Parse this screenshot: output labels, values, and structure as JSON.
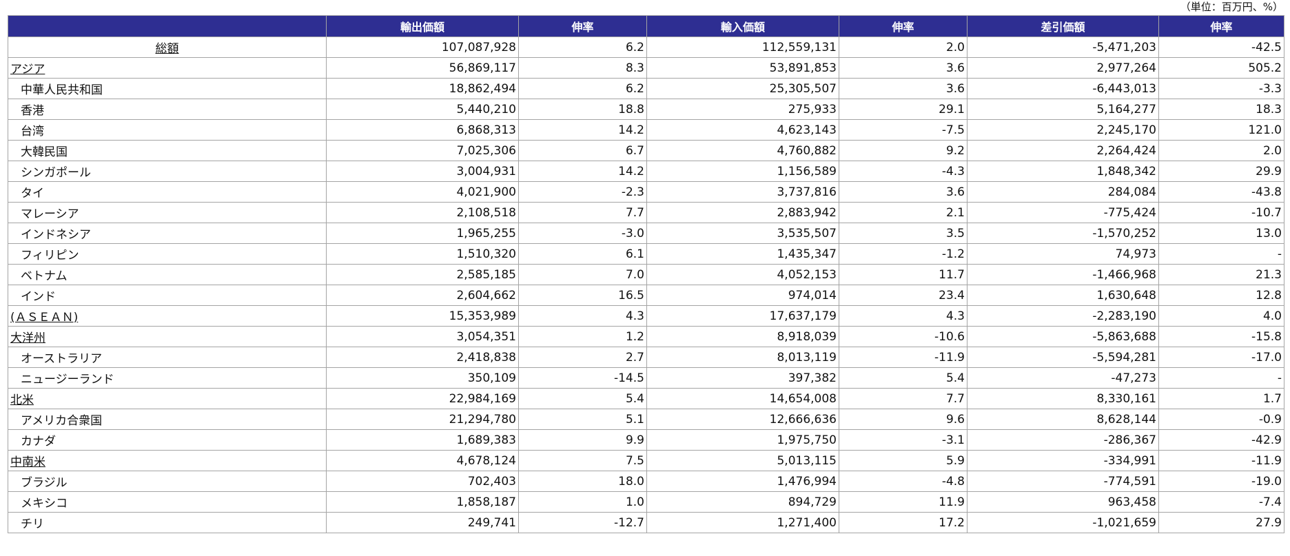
{
  "unit_note": "（単位：百万円、%）",
  "headers": [
    "",
    "輸出価額",
    "伸率",
    "輸入価額",
    "伸率",
    "差引価額",
    "伸率"
  ],
  "rows": [
    {
      "name": "総額",
      "type": "total",
      "link": true,
      "cells": [
        "107,087,928",
        "6.2",
        "112,559,131",
        "2.0",
        "-5,471,203",
        "-42.5"
      ]
    },
    {
      "name": "アジア",
      "type": "region",
      "link": true,
      "cells": [
        "56,869,117",
        "8.3",
        "53,891,853",
        "3.6",
        "2,977,264",
        "505.2"
      ]
    },
    {
      "name": "中華人民共和国",
      "type": "country",
      "link": false,
      "cells": [
        "18,862,494",
        "6.2",
        "25,305,507",
        "3.6",
        "-6,443,013",
        "-3.3"
      ]
    },
    {
      "name": "香港",
      "type": "country",
      "link": false,
      "cells": [
        "5,440,210",
        "18.8",
        "275,933",
        "29.1",
        "5,164,277",
        "18.3"
      ]
    },
    {
      "name": "台湾",
      "type": "country",
      "link": false,
      "cells": [
        "6,868,313",
        "14.2",
        "4,623,143",
        "-7.5",
        "2,245,170",
        "121.0"
      ]
    },
    {
      "name": "大韓民国",
      "type": "country",
      "link": false,
      "cells": [
        "7,025,306",
        "6.7",
        "4,760,882",
        "9.2",
        "2,264,424",
        "2.0"
      ]
    },
    {
      "name": "シンガポール",
      "type": "country",
      "link": false,
      "cells": [
        "3,004,931",
        "14.2",
        "1,156,589",
        "-4.3",
        "1,848,342",
        "29.9"
      ]
    },
    {
      "name": "タイ",
      "type": "country",
      "link": false,
      "cells": [
        "4,021,900",
        "-2.3",
        "3,737,816",
        "3.6",
        "284,084",
        "-43.8"
      ]
    },
    {
      "name": "マレーシア",
      "type": "country",
      "link": false,
      "cells": [
        "2,108,518",
        "7.7",
        "2,883,942",
        "2.1",
        "-775,424",
        "-10.7"
      ]
    },
    {
      "name": "インドネシア",
      "type": "country",
      "link": false,
      "cells": [
        "1,965,255",
        "-3.0",
        "3,535,507",
        "3.5",
        "-1,570,252",
        "13.0"
      ]
    },
    {
      "name": "フィリピン",
      "type": "country",
      "link": false,
      "cells": [
        "1,510,320",
        "6.1",
        "1,435,347",
        "-1.2",
        "74,973",
        "-"
      ]
    },
    {
      "name": "ベトナム",
      "type": "country",
      "link": false,
      "cells": [
        "2,585,185",
        "7.0",
        "4,052,153",
        "11.7",
        "-1,466,968",
        "21.3"
      ]
    },
    {
      "name": "インド",
      "type": "country",
      "link": false,
      "cells": [
        "2,604,662",
        "16.5",
        "974,014",
        "23.4",
        "1,630,648",
        "12.8"
      ]
    },
    {
      "name": "(ＡＳＥＡＮ)",
      "type": "region",
      "link": true,
      "cells": [
        "15,353,989",
        "4.3",
        "17,637,179",
        "4.3",
        "-2,283,190",
        "4.0"
      ]
    },
    {
      "name": "大洋州",
      "type": "region",
      "link": true,
      "cells": [
        "3,054,351",
        "1.2",
        "8,918,039",
        "-10.6",
        "-5,863,688",
        "-15.8"
      ]
    },
    {
      "name": "オーストラリア",
      "type": "country",
      "link": false,
      "cells": [
        "2,418,838",
        "2.7",
        "8,013,119",
        "-11.9",
        "-5,594,281",
        "-17.0"
      ]
    },
    {
      "name": "ニュージーランド",
      "type": "country",
      "link": false,
      "cells": [
        "350,109",
        "-14.5",
        "397,382",
        "5.4",
        "-47,273",
        "-"
      ]
    },
    {
      "name": "北米",
      "type": "region",
      "link": true,
      "cells": [
        "22,984,169",
        "5.4",
        "14,654,008",
        "7.7",
        "8,330,161",
        "1.7"
      ]
    },
    {
      "name": "アメリカ合衆国",
      "type": "country",
      "link": false,
      "cells": [
        "21,294,780",
        "5.1",
        "12,666,636",
        "9.6",
        "8,628,144",
        "-0.9"
      ]
    },
    {
      "name": "カナダ",
      "type": "country",
      "link": false,
      "cells": [
        "1,689,383",
        "9.9",
        "1,975,750",
        "-3.1",
        "-286,367",
        "-42.9"
      ]
    },
    {
      "name": "中南米",
      "type": "region",
      "link": true,
      "cells": [
        "4,678,124",
        "7.5",
        "5,013,115",
        "5.9",
        "-334,991",
        "-11.9"
      ]
    },
    {
      "name": "ブラジル",
      "type": "country",
      "link": false,
      "cells": [
        "702,403",
        "18.0",
        "1,476,994",
        "-4.8",
        "-774,591",
        "-19.0"
      ]
    },
    {
      "name": "メキシコ",
      "type": "country",
      "link": false,
      "cells": [
        "1,858,187",
        "1.0",
        "894,729",
        "11.9",
        "963,458",
        "-7.4"
      ]
    },
    {
      "name": "チリ",
      "type": "country",
      "link": false,
      "cells": [
        "249,741",
        "-12.7",
        "1,271,400",
        "17.2",
        "-1,021,659",
        "27.9"
      ]
    }
  ],
  "colors": {
    "header_bg": "#2e2e92",
    "header_text": "#ffffff",
    "border": "#a4a4a4"
  }
}
